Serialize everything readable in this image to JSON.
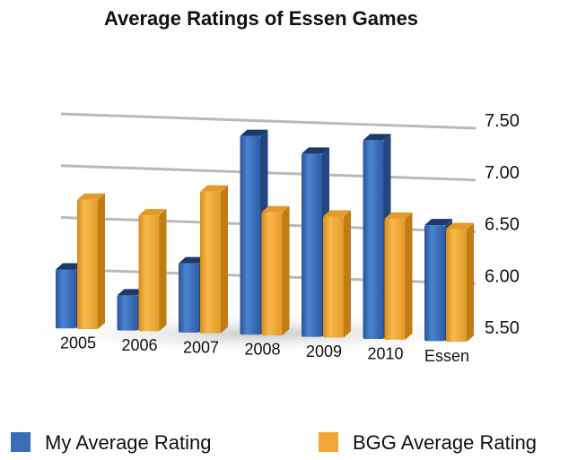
{
  "chart_data": {
    "type": "bar",
    "title": "Average Ratings of Essen Games",
    "categories": [
      "2005",
      "2006",
      "2007",
      "2008",
      "2009",
      "2010",
      "Essen"
    ],
    "series": [
      {
        "name": "My Average Rating",
        "color": "#3a6fb8",
        "values": [
          6.0,
          5.77,
          6.1,
          7.35,
          7.2,
          7.35,
          6.55
        ]
      },
      {
        "name": "BGG Average Rating",
        "color": "#f0a836",
        "values": [
          6.68,
          6.55,
          6.8,
          6.62,
          6.6,
          6.6,
          6.52
        ]
      }
    ],
    "yticks": [
      "5.50",
      "6.00",
      "6.50",
      "7.00",
      "7.50"
    ],
    "ylim": [
      5.5,
      7.5
    ],
    "grid": true,
    "legend_position": "bottom"
  }
}
